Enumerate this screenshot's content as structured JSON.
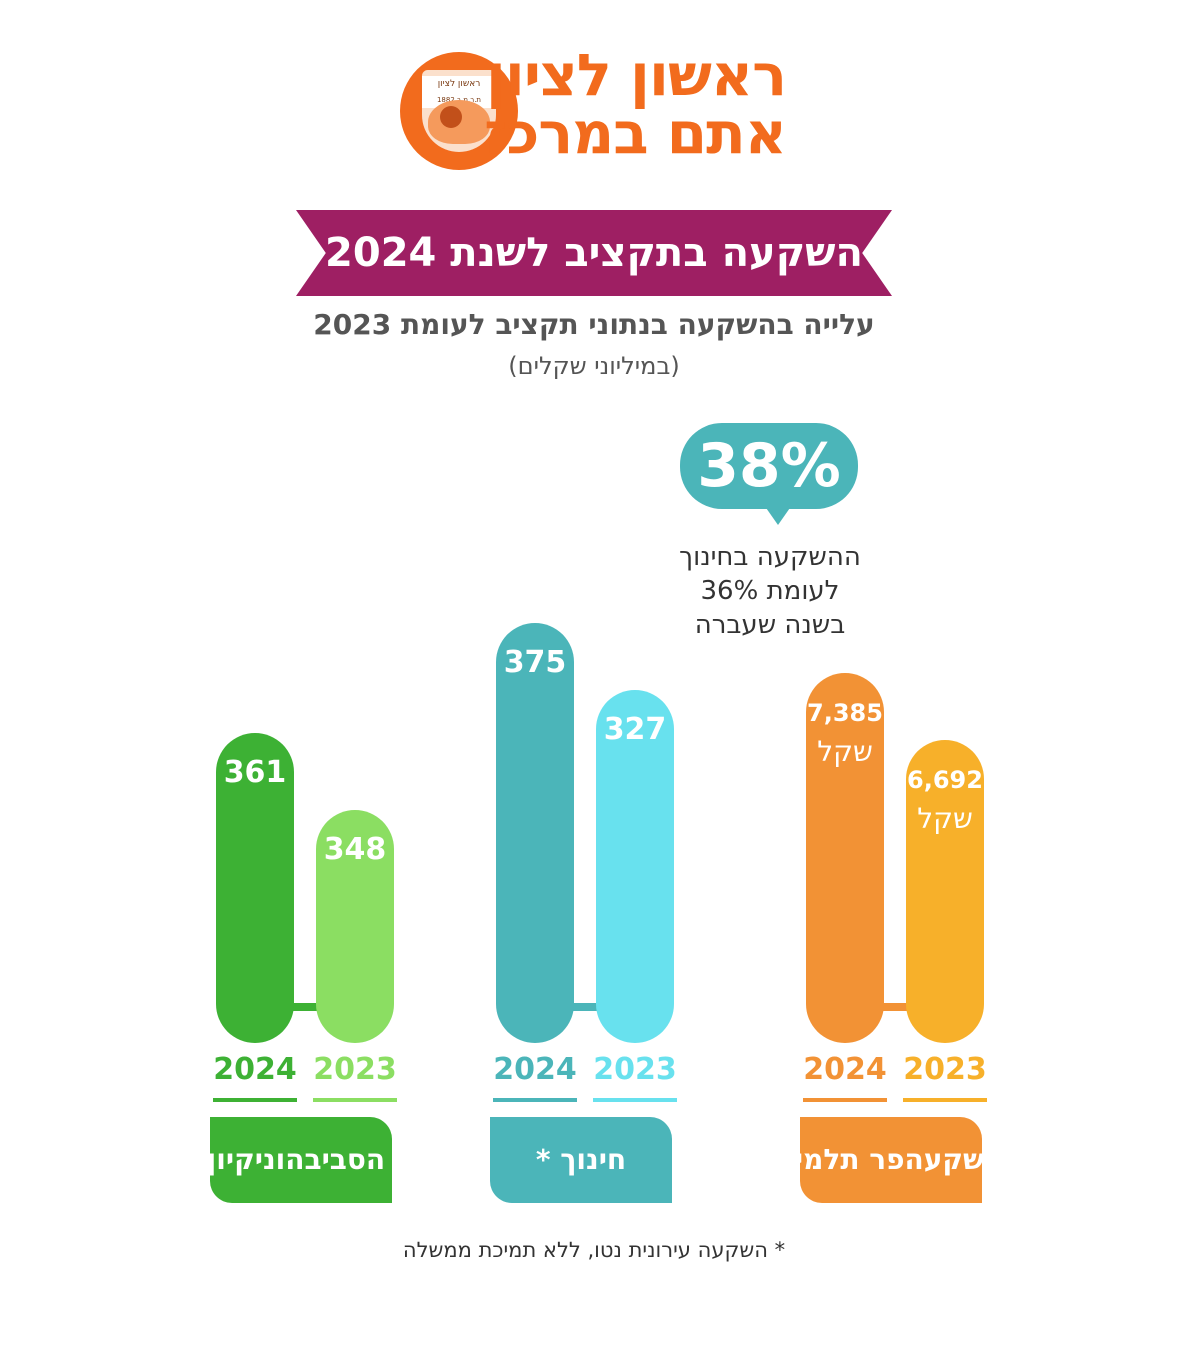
{
  "header": {
    "logo_line1": "ראשון לציון",
    "logo_line2": "אתם במרכז",
    "seal_text": "ראשון לציון",
    "seal_subtext": "ת.ר.מ.ב 1882",
    "accent_color": "#f26b1d"
  },
  "title": "השקעה בתקציב לשנת 2024",
  "subtitle": "עלייה בהשקעה בנתוני תקציב לעומת 2023",
  "unit_note": "(במיליוני שקלים)",
  "callout": {
    "value": "38%",
    "note_lines": [
      "ההשקעה בחינוך",
      "לעומת 36%",
      "בשנה שעברה"
    ]
  },
  "footnote": "* השקעה עירונית נטו, ללא תמיכת ממשלה",
  "chart_data": {
    "type": "bar",
    "title": "השקעה בתקציב לשנת 2024",
    "subtitle": "עלייה בהשקעה בנתוני תקציב לעומת 2023",
    "ylabel": "(במיליוני שקלים)",
    "categories": [
      "איכות הסביבה וניקיון העיר",
      "חינוך *",
      "השקעה פר תלמיד"
    ],
    "series": [
      {
        "name": "2024",
        "values": [
          361,
          375,
          7385
        ]
      },
      {
        "name": "2023",
        "values": [
          348,
          327,
          6692
        ]
      }
    ],
    "groups": [
      {
        "category_lines": [
          "איכות הסביבה",
          "וניקיון העיר"
        ],
        "color_2024": "#3db134",
        "color_2023": "#8bde62",
        "box_color": "#3db134",
        "bars": [
          {
            "year": "2024",
            "value": 361,
            "label": "361",
            "unit": ""
          },
          {
            "year": "2023",
            "value": 348,
            "label": "348",
            "unit": ""
          }
        ]
      },
      {
        "category_lines": [
          "חינוך *"
        ],
        "color_2024": "#4bb5b9",
        "color_2023": "#68e1ee",
        "box_color": "#4bb5b9",
        "bars": [
          {
            "year": "2024",
            "value": 375,
            "label": "375",
            "unit": ""
          },
          {
            "year": "2023",
            "value": 327,
            "label": "327",
            "unit": ""
          }
        ]
      },
      {
        "category_lines": [
          "השקעה",
          "פר תלמיד"
        ],
        "color_2024": "#f29235",
        "color_2023": "#f7b02a",
        "box_color": "#f29235",
        "bars": [
          {
            "year": "2024",
            "value": 7385,
            "label": "7,385",
            "unit": "שקל"
          },
          {
            "year": "2023",
            "value": 6692,
            "label": "6,692",
            "unit": "שקל"
          }
        ]
      }
    ],
    "legend": "none",
    "grid": false
  }
}
